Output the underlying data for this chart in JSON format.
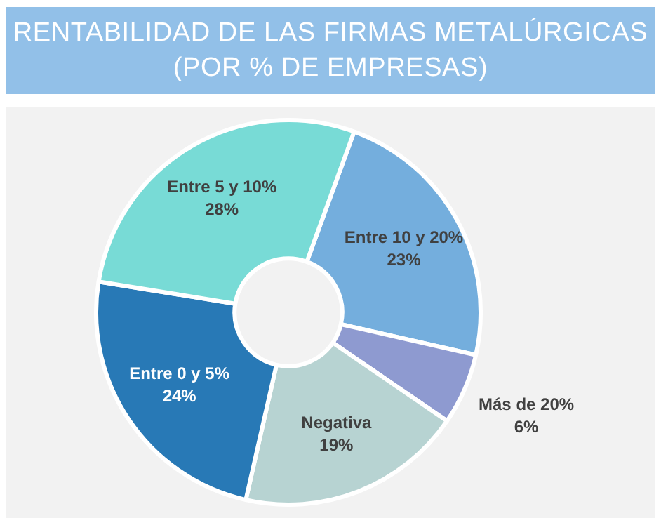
{
  "chart_data": {
    "type": "donut",
    "title": "RENTABILIDAD DE LAS FIRMAS METALÚRGICAS\n(POR % DE EMPRESAS)",
    "categories": [
      "Entre 10 y 20%",
      "Más de 20%",
      "Negativa",
      "Entre 0 y 5%",
      "Entre 5 y 10%"
    ],
    "values": [
      23,
      6,
      19,
      24,
      28
    ],
    "colors": [
      "#74aedd",
      "#8e9ad0",
      "#b7d3d2",
      "#2879b6",
      "#78dbd6"
    ],
    "value_labels": [
      "23%",
      "6%",
      "19%",
      "24%",
      "28%"
    ],
    "legend": false
  }
}
